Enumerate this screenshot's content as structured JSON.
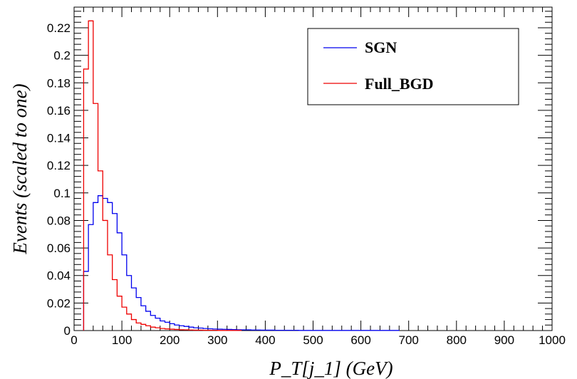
{
  "chart_data": {
    "type": "line",
    "title": "",
    "xlabel": "P_T[j_1] (GeV)",
    "ylabel": "Events (scaled to one)",
    "xlim": [
      0,
      1000
    ],
    "ylim": [
      0,
      0.235
    ],
    "x_ticks": [
      "0",
      "100",
      "200",
      "300",
      "400",
      "500",
      "600",
      "700",
      "800",
      "900",
      "1000"
    ],
    "y_ticks": [
      "0",
      "0.02",
      "0.04",
      "0.06",
      "0.08",
      "0.1",
      "0.12",
      "0.14",
      "0.16",
      "0.18",
      "0.2",
      "0.22"
    ],
    "x_tick_values": [
      0,
      100,
      200,
      300,
      400,
      500,
      600,
      700,
      800,
      900,
      1000
    ],
    "y_tick_values": [
      0,
      0.02,
      0.04,
      0.06,
      0.08,
      0.1,
      0.12,
      0.14,
      0.16,
      0.18,
      0.2,
      0.22
    ],
    "bin_width": 10,
    "grid": false,
    "legend_position": "top-right",
    "series": [
      {
        "name": "SGN",
        "color": "#0000ee",
        "x_start": 20,
        "values": [
          0.043,
          0.077,
          0.093,
          0.098,
          0.096,
          0.093,
          0.085,
          0.071,
          0.055,
          0.04,
          0.031,
          0.024,
          0.018,
          0.014,
          0.011,
          0.009,
          0.007,
          0.006,
          0.005,
          0.004,
          0.0035,
          0.003,
          0.0025,
          0.002,
          0.0018,
          0.0015,
          0.0013,
          0.0011,
          0.001,
          0.0009,
          0.0008,
          0.0007,
          0.0006,
          0.0005,
          0.0005,
          0.0004,
          0.0004,
          0.0003,
          0.0003,
          0.0003,
          0.0002,
          0.0002,
          0.0002,
          0.0002,
          0.0002,
          0.0001,
          0.0001,
          0.0001,
          0.0001,
          0.0001,
          0.0001,
          0.0001,
          0.0001,
          0.0001,
          0.0001,
          0.0001,
          0.0001,
          0.0001,
          0.0001,
          0.0001,
          0.0001,
          0.0001,
          0.0001,
          0.0001,
          0.0001,
          0.0001
        ]
      },
      {
        "name": "Full_BGD",
        "color": "#ee0000",
        "x_start": 20,
        "values": [
          0.19,
          0.225,
          0.165,
          0.116,
          0.08,
          0.055,
          0.037,
          0.025,
          0.017,
          0.012,
          0.008,
          0.0055,
          0.0045,
          0.0035,
          0.0025,
          0.002,
          0.0015,
          0.0012,
          0.001,
          0.0008,
          0.0006,
          0.0005,
          0.0004,
          0.0003,
          0.0003,
          0.0002,
          0.0002,
          0.0002,
          0.0001,
          0.0001,
          0.0001,
          0.0001,
          0.0001
        ]
      }
    ]
  }
}
